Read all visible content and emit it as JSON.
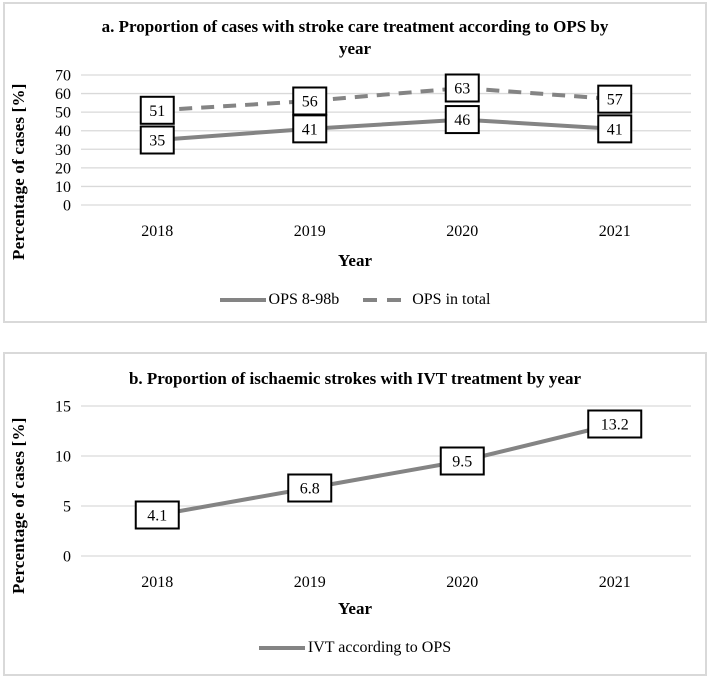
{
  "colors": {
    "series_gray": "#848484",
    "gridline": "#d9d9d9",
    "panel_border": "#d9d9d9",
    "text": "#000000",
    "label_box_fill": "#ffffff",
    "label_box_border": "#000000"
  },
  "chart_data": [
    {
      "type": "line",
      "title": "a. Proportion of cases with stroke care treatment according to OPS by year",
      "xlabel": "Year",
      "ylabel": "Percentage of cases [%]",
      "categories": [
        "2018",
        "2019",
        "2020",
        "2021"
      ],
      "ylim": [
        0,
        70
      ],
      "yticks": [
        0,
        10,
        20,
        30,
        40,
        50,
        60,
        70
      ],
      "grid": true,
      "legend_position": "bottom",
      "series": [
        {
          "name": "OPS 8-98b",
          "values": [
            35,
            41,
            46,
            41
          ],
          "style": "solid",
          "color": "#848484",
          "data_labels": true
        },
        {
          "name": "OPS in total",
          "values": [
            51,
            56,
            63,
            57
          ],
          "style": "dashed",
          "color": "#848484",
          "data_labels": true
        }
      ]
    },
    {
      "type": "line",
      "title": "b. Proportion of ischaemic strokes with IVT treatment by year",
      "xlabel": "Year",
      "ylabel": "Percentage of cases [%]",
      "categories": [
        "2018",
        "2019",
        "2020",
        "2021"
      ],
      "ylim": [
        0,
        15
      ],
      "yticks": [
        0,
        5,
        10,
        15
      ],
      "grid": true,
      "legend_position": "bottom",
      "series": [
        {
          "name": "IVT according to OPS",
          "values": [
            4.1,
            6.8,
            9.5,
            13.2
          ],
          "style": "solid",
          "color": "#848484",
          "data_labels": true
        }
      ]
    }
  ]
}
